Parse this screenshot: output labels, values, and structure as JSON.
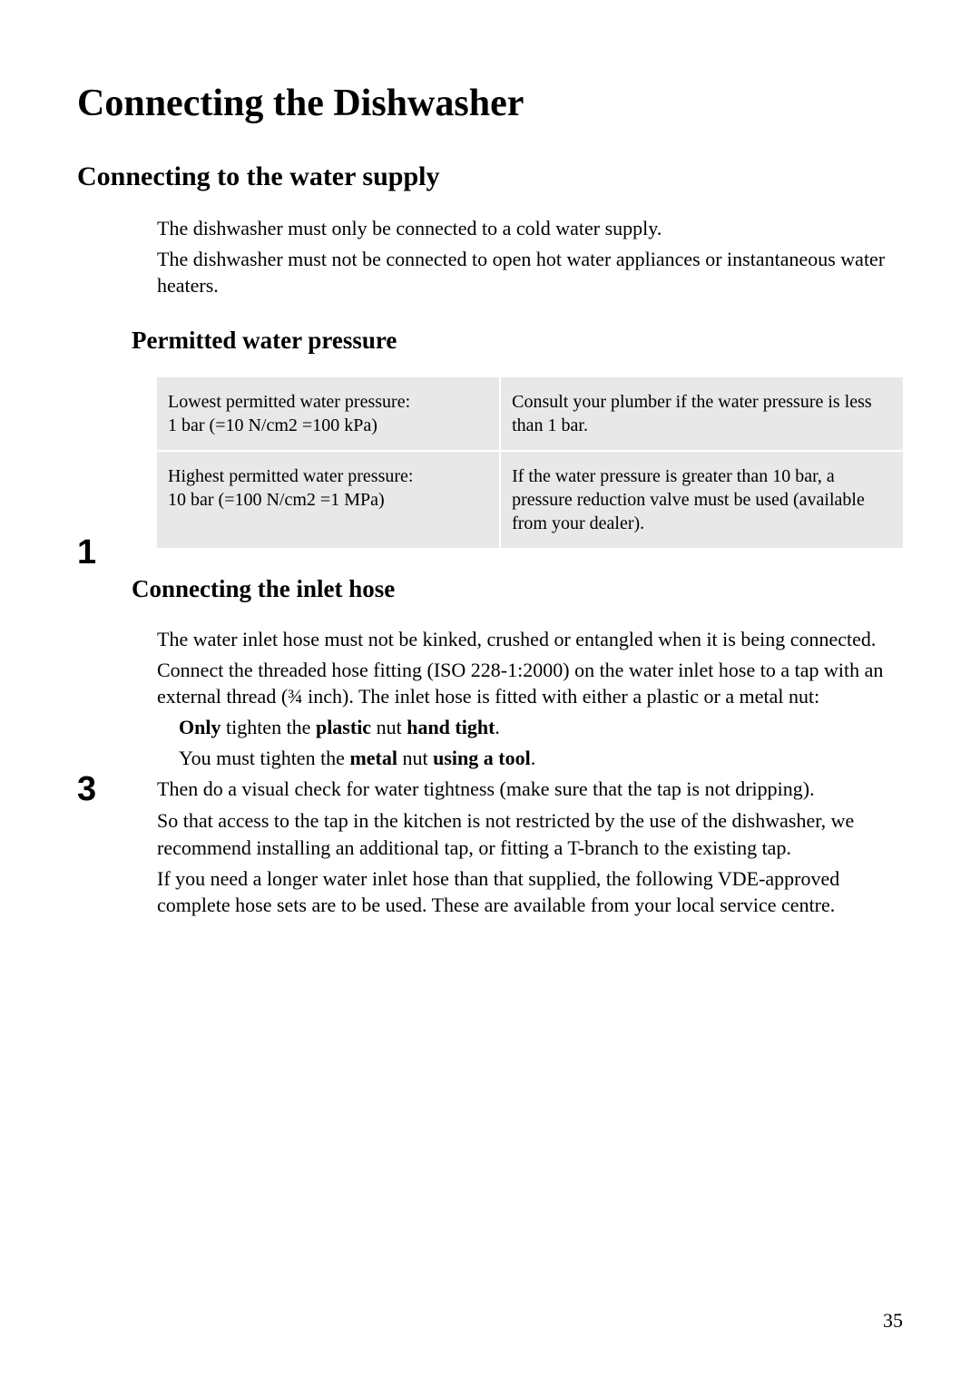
{
  "title": "Connecting the Dishwasher",
  "section1": {
    "heading": "Connecting to the water supply",
    "para1": "The dishwasher must only be connected to a cold water supply.",
    "para2": "The dishwasher must not be connected to open hot water appliances or instantaneous water heaters."
  },
  "pressure": {
    "heading": "Permitted water pressure",
    "table": {
      "rows": [
        {
          "left": "Lowest permitted water pressure:\n1 bar (=10 N/cm2 =100 kPa)",
          "right": "Consult your plumber if the water pressure is less than 1 bar."
        },
        {
          "left": "Highest permitted water pressure:\n10 bar (=100 N/cm2 =1 MPa)",
          "right": "If the water pressure is greater than 10 bar, a pressure reduction valve must be used (available from your dealer)."
        }
      ]
    }
  },
  "inlet": {
    "heading": "Connecting the inlet hose",
    "marker1": "1",
    "marker3": "3",
    "para1": "The water inlet hose must not be kinked, crushed or entangled when it is being connected.",
    "para2": "Connect the threaded hose fitting (ISO 228-1:2000) on the water inlet hose to a tap with an external thread (¾ inch). The inlet hose is fitted with either a plastic or a metal nut:",
    "bullet1_parts": {
      "only": "Only",
      "t1": " tighten the ",
      "plastic": "plastic",
      "t2": " nut ",
      "handtight": "hand tight",
      "t3": "."
    },
    "bullet2_parts": {
      "t1": "You must tighten the ",
      "metal": "metal",
      "t2": " nut ",
      "tool": "using a tool",
      "t3": "."
    },
    "para3": "Then do a visual check for water tightness (make sure that the tap is not dripping).",
    "para4": "So that access to the tap in the kitchen is not restricted by the use of the dishwasher, we recommend installing an additional tap, or fitting a T-branch to the existing tap.",
    "para5": "If you need a longer water inlet hose than that supplied, the following VDE-approved complete hose sets are to be used. These are available from your local service centre."
  },
  "page_number": "35",
  "colors": {
    "bg": "#ffffff",
    "table_bg": "#e8e8e8",
    "text": "#000000"
  }
}
